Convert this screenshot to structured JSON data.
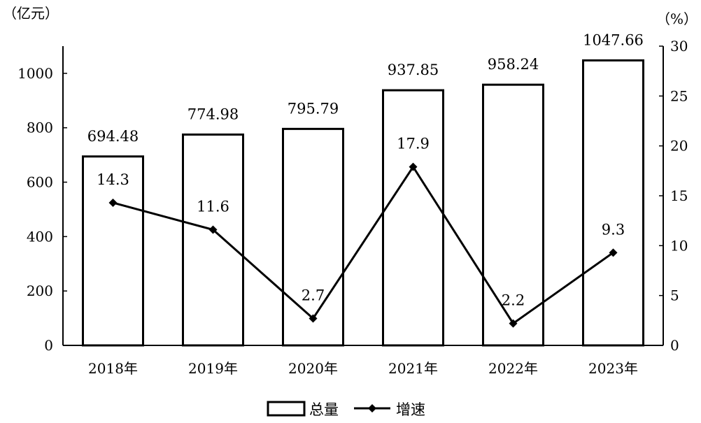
{
  "chart_data": {
    "type": "bar",
    "categories": [
      "2018年",
      "2019年",
      "2020年",
      "2021年",
      "2022年",
      "2023年"
    ],
    "series": [
      {
        "name": "总量",
        "type": "bar",
        "axis": "left",
        "values": [
          694.48,
          774.98,
          795.79,
          937.85,
          958.24,
          1047.66
        ],
        "labels": [
          "694.48",
          "774.98",
          "795.79",
          "937.85",
          "958.24",
          "1047.66"
        ]
      },
      {
        "name": "增速",
        "type": "line",
        "axis": "right",
        "values": [
          14.3,
          11.6,
          2.7,
          17.9,
          2.2,
          9.3
        ],
        "labels": [
          "14.3",
          "11.6",
          "2.7",
          "17.9",
          "2.2",
          "9.3"
        ]
      }
    ],
    "y_left": {
      "unit": "（亿元）",
      "ylim": [
        0,
        1100
      ],
      "ticks": [
        0,
        200,
        400,
        600,
        800,
        1000
      ],
      "tick_labels": [
        "0",
        "200",
        "400",
        "600",
        "800",
        "1000"
      ]
    },
    "y_right": {
      "unit": "（%）",
      "ylim": [
        0,
        30
      ],
      "ticks": [
        0,
        5,
        10,
        15,
        20,
        25,
        30
      ],
      "tick_labels": [
        "0",
        "5",
        "10",
        "15",
        "20",
        "25",
        "30"
      ]
    },
    "grid": false,
    "legend_position": "bottom-center",
    "colors": {
      "bar_fill": "#ffffff",
      "stroke": "#000000",
      "line": "#000000"
    }
  }
}
